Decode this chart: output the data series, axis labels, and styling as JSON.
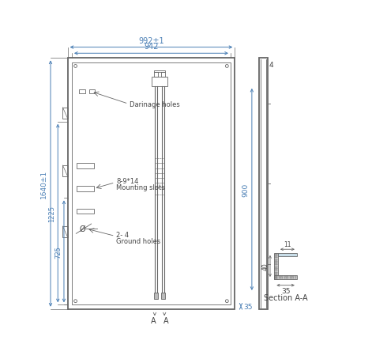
{
  "bg_color": "#ffffff",
  "line_color": "#666666",
  "dim_color": "#4a7fb5",
  "text_color": "#444444",
  "dim_992": "992±1",
  "dim_942": "942",
  "dim_1640": "1640±1",
  "dim_1225": "1225",
  "dim_725": "725",
  "dim_900": "900",
  "dim_35_right": "35",
  "label_drainage": "Darinage holes",
  "label_mounting_1": "8-9*14",
  "label_mounting_2": "Mounting slots",
  "label_ground_1": "2- 4",
  "label_ground_2": "Ground holes",
  "section_label": "Section A-A",
  "dim_11": "11",
  "dim_40": "40",
  "dim_35_sec": "35",
  "label_A": "A",
  "dim_4_side": "4"
}
